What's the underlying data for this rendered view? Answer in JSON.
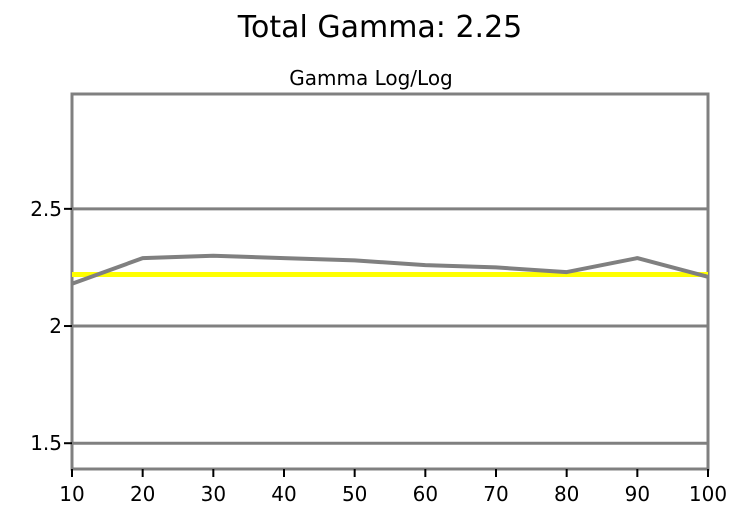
{
  "chart_data": {
    "type": "line",
    "title": "Total Gamma: 2.25",
    "subtitle": "Gamma Log/Log",
    "x": [
      10,
      20,
      30,
      40,
      50,
      60,
      70,
      80,
      90,
      100
    ],
    "x_ticks": [
      "10",
      "20",
      "30",
      "40",
      "50",
      "60",
      "70",
      "80",
      "90",
      "100"
    ],
    "xlim": [
      10,
      100
    ],
    "y_ticks": [
      "1.5",
      "2",
      "2.5"
    ],
    "y_tick_values": [
      1.5,
      2,
      2.5
    ],
    "ylim": [
      1.39,
      2.99
    ],
    "grid": true,
    "legend": "none",
    "series": [
      {
        "values": [
          2.18,
          2.29,
          2.3,
          2.29,
          2.28,
          2.26,
          2.25,
          2.23,
          2.29,
          2.21
        ],
        "color": "#808080"
      },
      {
        "values": [
          2.22,
          2.22,
          2.22,
          2.22,
          2.22,
          2.22,
          2.22,
          2.22,
          2.22,
          2.22
        ],
        "color": "#ffff00"
      }
    ],
    "grid_color": "#808080",
    "frame_color": "#808080"
  }
}
